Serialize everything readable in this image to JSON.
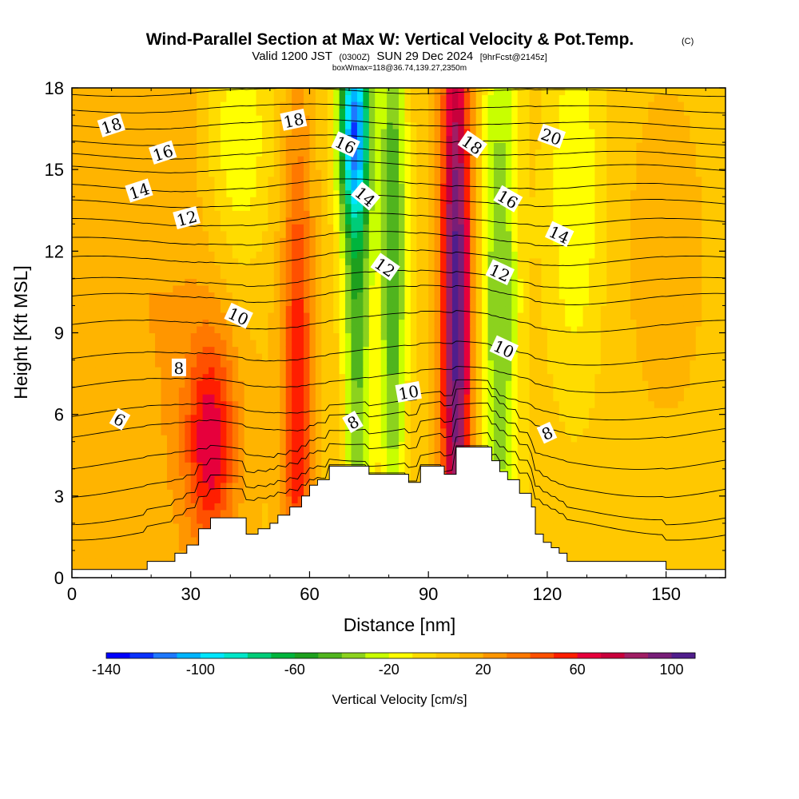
{
  "chart_data": {
    "type": "heatmap",
    "title": "Wind-Parallel Section at Max W: Vertical Velocity & Pot.Temp.",
    "title_mark": "(C)",
    "subtitle_valid": "Valid 1200 JST",
    "subtitle_utc": "(0300Z)",
    "subtitle_date": "SUN 29 Dec 2024",
    "subtitle_fcst": "[9hrFcst@2145z]",
    "subtitle_box": "boxWmax=118@36.74,139.27,2350m",
    "xlabel": "Distance [nm]",
    "ylabel": "Height [Kft MSL]",
    "xlim": [
      0,
      165
    ],
    "ylim": [
      0,
      18
    ],
    "x_ticks": [
      0,
      30,
      60,
      90,
      120,
      150
    ],
    "y_ticks": [
      0,
      3,
      6,
      9,
      12,
      15,
      18
    ],
    "x_tick_labels": [
      "0",
      "30",
      "60",
      "90",
      "120",
      "150"
    ],
    "y_tick_labels": [
      "0",
      "3",
      "6",
      "9",
      "12",
      "15",
      "18"
    ],
    "colorbar": {
      "label": "Vertical Velocity [cm/s]",
      "min": -140,
      "max": 110,
      "step": 10,
      "tick_labels": [
        "-140",
        "-100",
        "-60",
        "-20",
        "20",
        "60",
        "100"
      ],
      "tick_values": [
        -140,
        -100,
        -60,
        -20,
        20,
        60,
        100
      ],
      "colors": [
        "#0000ff",
        "#0a32ff",
        "#1e78ff",
        "#00b4ff",
        "#00e6ff",
        "#00e6c8",
        "#00cc78",
        "#00b43c",
        "#1ea01e",
        "#50b41e",
        "#8cd21e",
        "#c8ff00",
        "#ffff00",
        "#ffdc00",
        "#ffc800",
        "#ffb400",
        "#ff9600",
        "#ff7800",
        "#ff5000",
        "#ff1e00",
        "#e6003c",
        "#c8003c",
        "#a01e64",
        "#781e78",
        "#501e8c"
      ]
    },
    "velocity_features": [
      {
        "x": 35,
        "z": 5.0,
        "wx": 4.5,
        "wz": 2.8,
        "w": 55
      },
      {
        "x": 57,
        "z": 6.5,
        "wx": 2.8,
        "wz": 7.5,
        "w": 50
      },
      {
        "x": 97,
        "z": 10.0,
        "wx": 2.8,
        "wz": 9.0,
        "w": 100
      },
      {
        "x": 72,
        "z": 12.0,
        "wx": 2.5,
        "wz": 9.0,
        "w": -55
      },
      {
        "x": 81,
        "z": 12.0,
        "wx": 2.5,
        "wz": 8.0,
        "w": -55
      },
      {
        "x": 71,
        "z": 16.5,
        "wx": 3.0,
        "wz": 2.5,
        "w": -80
      },
      {
        "x": 42,
        "z": 16.0,
        "wx": 6.0,
        "wz": 3.5,
        "w": -30
      },
      {
        "x": 108,
        "z": 10.0,
        "wx": 3.5,
        "wz": 9.0,
        "w": -45
      },
      {
        "x": 127,
        "z": 14.0,
        "wx": 5.0,
        "wz": 5.0,
        "w": -25
      },
      {
        "x": 150,
        "z": 12.0,
        "wx": 8.0,
        "wz": 5.0,
        "w": 10
      },
      {
        "x": 20,
        "z": 10.0,
        "wx": 20.0,
        "wz": 10.0,
        "w": 15
      }
    ],
    "terrain": [
      [
        0,
        0.3
      ],
      [
        19,
        0.3
      ],
      [
        19,
        0.6
      ],
      [
        26,
        0.6
      ],
      [
        26,
        0.9
      ],
      [
        29,
        0.9
      ],
      [
        29,
        1.2
      ],
      [
        32,
        1.2
      ],
      [
        32,
        1.8
      ],
      [
        35,
        1.8
      ],
      [
        35,
        2.2
      ],
      [
        44,
        2.2
      ],
      [
        44,
        1.6
      ],
      [
        47,
        1.6
      ],
      [
        47,
        1.8
      ],
      [
        50,
        1.8
      ],
      [
        50,
        2.0
      ],
      [
        52,
        2.0
      ],
      [
        52,
        2.3
      ],
      [
        55,
        2.3
      ],
      [
        55,
        2.6
      ],
      [
        58,
        2.6
      ],
      [
        58,
        3.0
      ],
      [
        60,
        3.0
      ],
      [
        60,
        3.4
      ],
      [
        62,
        3.4
      ],
      [
        62,
        3.6
      ],
      [
        65,
        3.6
      ],
      [
        65,
        4.1
      ],
      [
        75,
        4.1
      ],
      [
        75,
        3.8
      ],
      [
        85,
        3.8
      ],
      [
        85,
        3.5
      ],
      [
        88,
        3.5
      ],
      [
        88,
        4.1
      ],
      [
        94,
        4.1
      ],
      [
        94,
        3.8
      ],
      [
        97,
        3.8
      ],
      [
        97,
        4.8
      ],
      [
        106,
        4.8
      ],
      [
        106,
        4.3
      ],
      [
        108,
        4.3
      ],
      [
        108,
        3.9
      ],
      [
        110,
        3.9
      ],
      [
        110,
        3.6
      ],
      [
        113,
        3.6
      ],
      [
        113,
        3.1
      ],
      [
        116,
        3.1
      ],
      [
        116,
        2.6
      ],
      [
        117,
        2.6
      ],
      [
        117,
        1.6
      ],
      [
        119,
        1.6
      ],
      [
        119,
        1.3
      ],
      [
        121,
        1.3
      ],
      [
        121,
        1.1
      ],
      [
        123,
        1.1
      ],
      [
        123,
        0.9
      ],
      [
        125,
        0.9
      ],
      [
        125,
        0.6
      ],
      [
        150,
        0.6
      ],
      [
        150,
        0.3
      ],
      [
        165,
        0.3
      ]
    ],
    "isentropes": {
      "base_levels": [
        1,
        2,
        3,
        4,
        5,
        6,
        7,
        8,
        9,
        10,
        11,
        12,
        13,
        14,
        15,
        16,
        17,
        18,
        19,
        20,
        21,
        22
      ],
      "z_at_x0": [
        1.0,
        2.0,
        3.2,
        4.2,
        5.3,
        6.0,
        7.0,
        8.0,
        9.2,
        10.2,
        10.8,
        11.6,
        12.3,
        13.0,
        13.7,
        14.3,
        15.0,
        15.5,
        16.0,
        16.6,
        17.2,
        17.8
      ]
    },
    "contour_labels": [
      {
        "text": "18",
        "x": 10,
        "z": 16.6,
        "rot": -18
      },
      {
        "text": "16",
        "x": 23,
        "z": 15.6,
        "rot": -18
      },
      {
        "text": "14",
        "x": 17,
        "z": 14.2,
        "rot": -18
      },
      {
        "text": "12",
        "x": 29,
        "z": 13.2,
        "rot": -15
      },
      {
        "text": "10",
        "x": 42,
        "z": 9.6,
        "rot": 25
      },
      {
        "text": "8",
        "x": 27,
        "z": 7.7,
        "rot": 0
      },
      {
        "text": "6",
        "x": 12,
        "z": 5.8,
        "rot": 30
      },
      {
        "text": "18",
        "x": 56,
        "z": 16.8,
        "rot": -12
      },
      {
        "text": "16",
        "x": 69,
        "z": 15.9,
        "rot": 25
      },
      {
        "text": "14",
        "x": 74,
        "z": 14.0,
        "rot": 40
      },
      {
        "text": "12",
        "x": 79,
        "z": 11.4,
        "rot": 35
      },
      {
        "text": "10",
        "x": 85,
        "z": 6.8,
        "rot": -10
      },
      {
        "text": "8",
        "x": 71,
        "z": 5.7,
        "rot": -30
      },
      {
        "text": "18",
        "x": 101,
        "z": 15.9,
        "rot": 35
      },
      {
        "text": "16",
        "x": 110,
        "z": 13.9,
        "rot": 30
      },
      {
        "text": "14",
        "x": 123,
        "z": 12.6,
        "rot": 25
      },
      {
        "text": "12",
        "x": 108,
        "z": 11.2,
        "rot": 25
      },
      {
        "text": "10",
        "x": 109,
        "z": 8.4,
        "rot": 25
      },
      {
        "text": "8",
        "x": 120,
        "z": 5.3,
        "rot": -25
      },
      {
        "text": "20",
        "x": 121,
        "z": 16.2,
        "rot": 20
      }
    ]
  }
}
